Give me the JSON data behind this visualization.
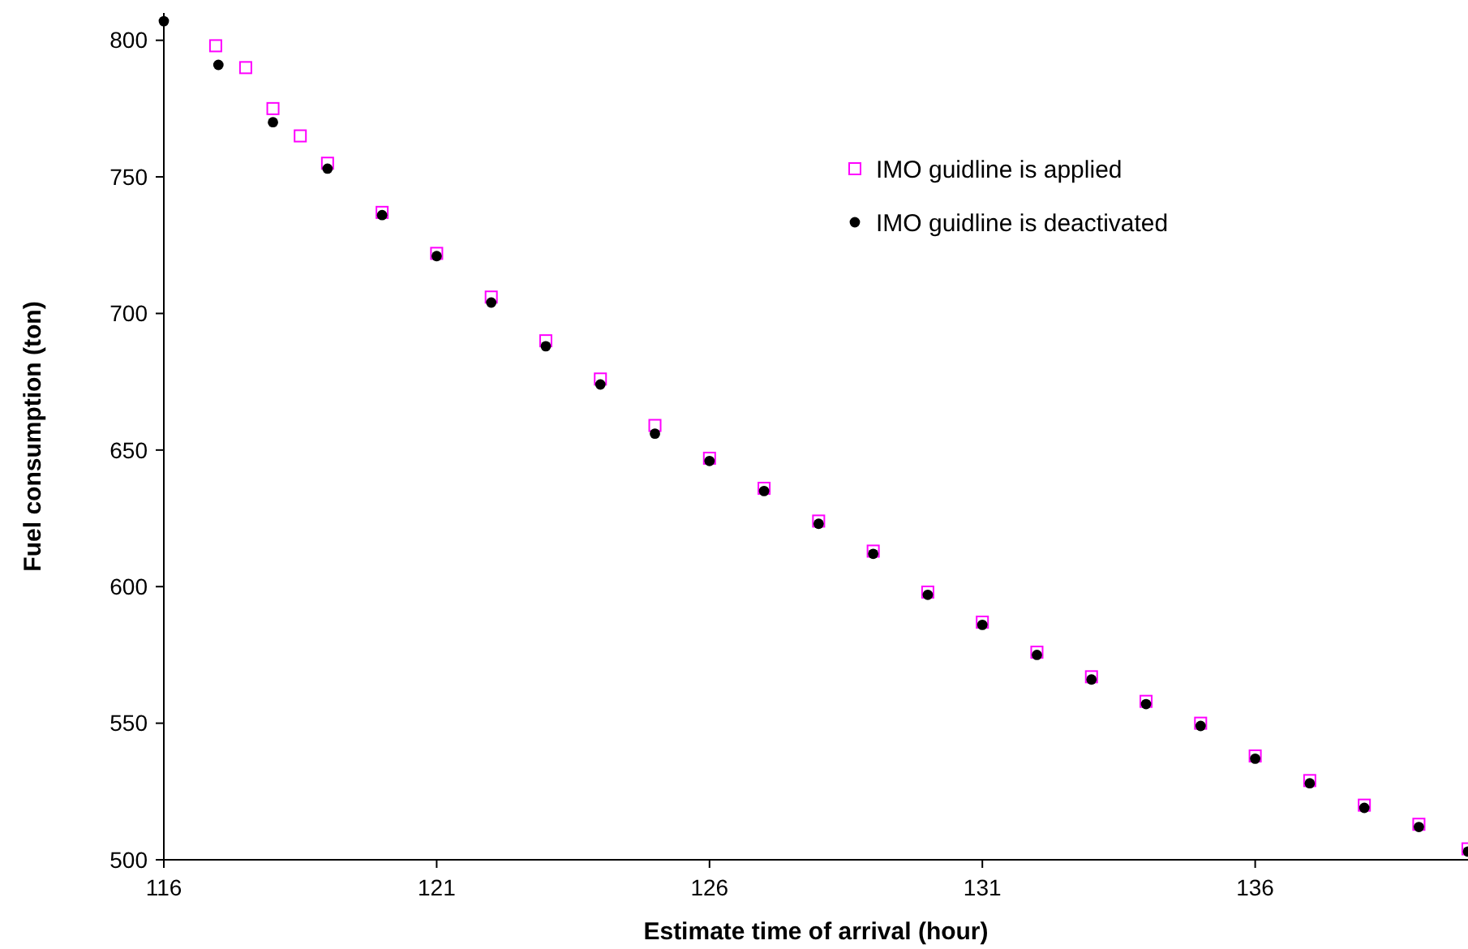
{
  "chart_data": {
    "type": "scatter",
    "xlabel": "Estimate time of arrival (hour)",
    "ylabel": "Fuel consumption (ton)",
    "xlim": [
      116,
      139.9
    ],
    "xticks": [
      116,
      121,
      126,
      131,
      136
    ],
    "ylim": [
      500,
      810
    ],
    "yticks": [
      500,
      550,
      600,
      650,
      700,
      750,
      800
    ],
    "grid": false,
    "legend": "top right",
    "series": [
      {
        "name": "IMO guidline is applied",
        "color": "#ff00ff",
        "marker": "square",
        "x": [
          116.95,
          117.5,
          118,
          118.5,
          119,
          120,
          121,
          122,
          123,
          124,
          125,
          126,
          127,
          128,
          129,
          130,
          131,
          132,
          133,
          134,
          135,
          136,
          137,
          138,
          139,
          139.9
        ],
        "values": [
          798,
          790,
          775,
          765,
          755,
          737,
          722,
          706,
          690,
          676,
          659,
          647,
          636,
          624,
          613,
          598,
          587,
          576,
          567,
          558,
          550,
          538,
          529,
          520,
          513,
          504
        ]
      },
      {
        "name": "IMO guidline is deactivated",
        "color": "#000000",
        "marker": "circle",
        "x": [
          116,
          117,
          118,
          119,
          120,
          121,
          122,
          123,
          124,
          125,
          126,
          127,
          128,
          129,
          130,
          131,
          132,
          133,
          134,
          135,
          136,
          137,
          138,
          139,
          139.9
        ],
        "values": [
          807,
          791,
          770,
          753,
          736,
          721,
          704,
          688,
          674,
          656,
          646,
          635,
          623,
          612,
          597,
          586,
          575,
          566,
          557,
          549,
          537,
          528,
          519,
          512,
          503
        ]
      }
    ]
  }
}
